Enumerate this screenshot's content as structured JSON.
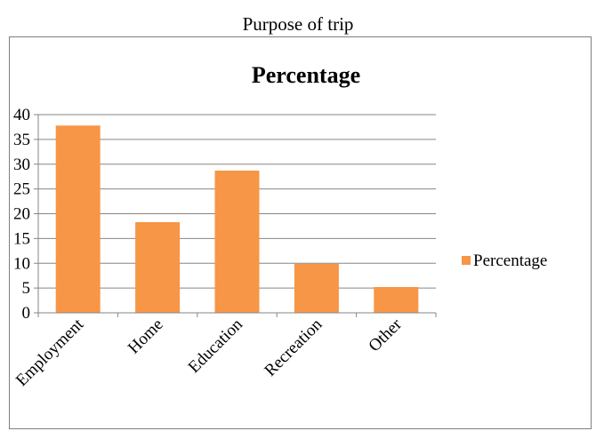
{
  "caption": "Purpose of trip",
  "colors": {
    "bar": "#f79646",
    "grid": "#868686",
    "axis": "#868686"
  },
  "chart_data": {
    "type": "bar",
    "title": "Percentage",
    "xlabel": "",
    "ylabel": "",
    "categories": [
      "Employment",
      "Home",
      "Education",
      "Recreation",
      "Other"
    ],
    "series": [
      {
        "name": "Percentage",
        "values": [
          37.8,
          18.3,
          28.7,
          9.9,
          5.2
        ]
      }
    ],
    "ylim": [
      0,
      40
    ],
    "yticks": [
      0,
      5,
      10,
      15,
      20,
      25,
      30,
      35,
      40
    ],
    "grid": true,
    "legend": "right"
  }
}
